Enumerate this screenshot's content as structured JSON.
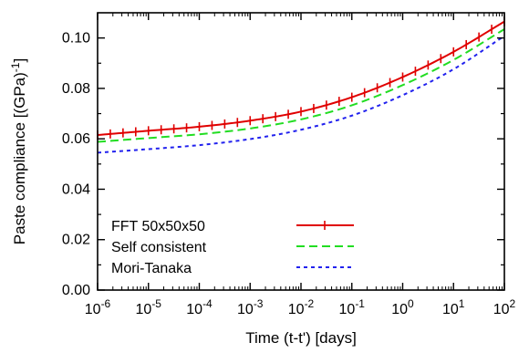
{
  "chart_data": {
    "type": "line",
    "xlabel": "Time (t-t') [days]",
    "ylabel": "Paste compliance [(GPa)",
    "ylabel_sup": "-1",
    "ylabel_tail": "]",
    "x_scale": "log",
    "xlim": [
      1e-06,
      100
    ],
    "ylim": [
      0.0,
      0.11
    ],
    "grid": false,
    "legend_position": "bottom-left",
    "x_ticks": [
      {
        "base": "10",
        "exp": "-6",
        "value": 1e-06
      },
      {
        "base": "10",
        "exp": "-5",
        "value": 1e-05
      },
      {
        "base": "10",
        "exp": "-4",
        "value": 0.0001
      },
      {
        "base": "10",
        "exp": "-3",
        "value": 0.001
      },
      {
        "base": "10",
        "exp": "-2",
        "value": 0.01
      },
      {
        "base": "10",
        "exp": "-1",
        "value": 0.1
      },
      {
        "base": "10",
        "exp": "0",
        "value": 1
      },
      {
        "base": "10",
        "exp": "1",
        "value": 10
      },
      {
        "base": "10",
        "exp": "2",
        "value": 100
      }
    ],
    "y_ticks": [
      {
        "label": "0.00",
        "value": 0.0
      },
      {
        "label": "0.02",
        "value": 0.02
      },
      {
        "label": "0.04",
        "value": 0.04
      },
      {
        "label": "0.06",
        "value": 0.06
      },
      {
        "label": "0.08",
        "value": 0.08
      },
      {
        "label": "0.10",
        "value": 0.1
      }
    ],
    "series": [
      {
        "name": "FFT 50x50x50",
        "color": "#e00000",
        "style": "solid-markers",
        "x": [
          1e-06,
          1e-05,
          0.0001,
          0.001,
          0.01,
          0.1,
          1,
          10,
          100
        ],
        "y": [
          0.0615,
          0.0632,
          0.0648,
          0.0672,
          0.0708,
          0.0765,
          0.0845,
          0.0945,
          0.1065
        ]
      },
      {
        "name": "Self consistent",
        "color": "#22dd22",
        "style": "dashed",
        "x": [
          1e-06,
          1e-05,
          0.0001,
          0.001,
          0.01,
          0.1,
          1,
          10,
          100
        ],
        "y": [
          0.0588,
          0.0603,
          0.0618,
          0.0641,
          0.0677,
          0.0733,
          0.0813,
          0.0913,
          0.1035
        ]
      },
      {
        "name": "Mori-Tanaka",
        "color": "#2222ee",
        "style": "dotted",
        "x": [
          1e-06,
          1e-05,
          0.0001,
          0.001,
          0.01,
          0.1,
          1,
          10,
          100
        ],
        "y": [
          0.0545,
          0.0559,
          0.0575,
          0.0599,
          0.0636,
          0.0692,
          0.0773,
          0.0876,
          0.1008
        ]
      }
    ]
  }
}
